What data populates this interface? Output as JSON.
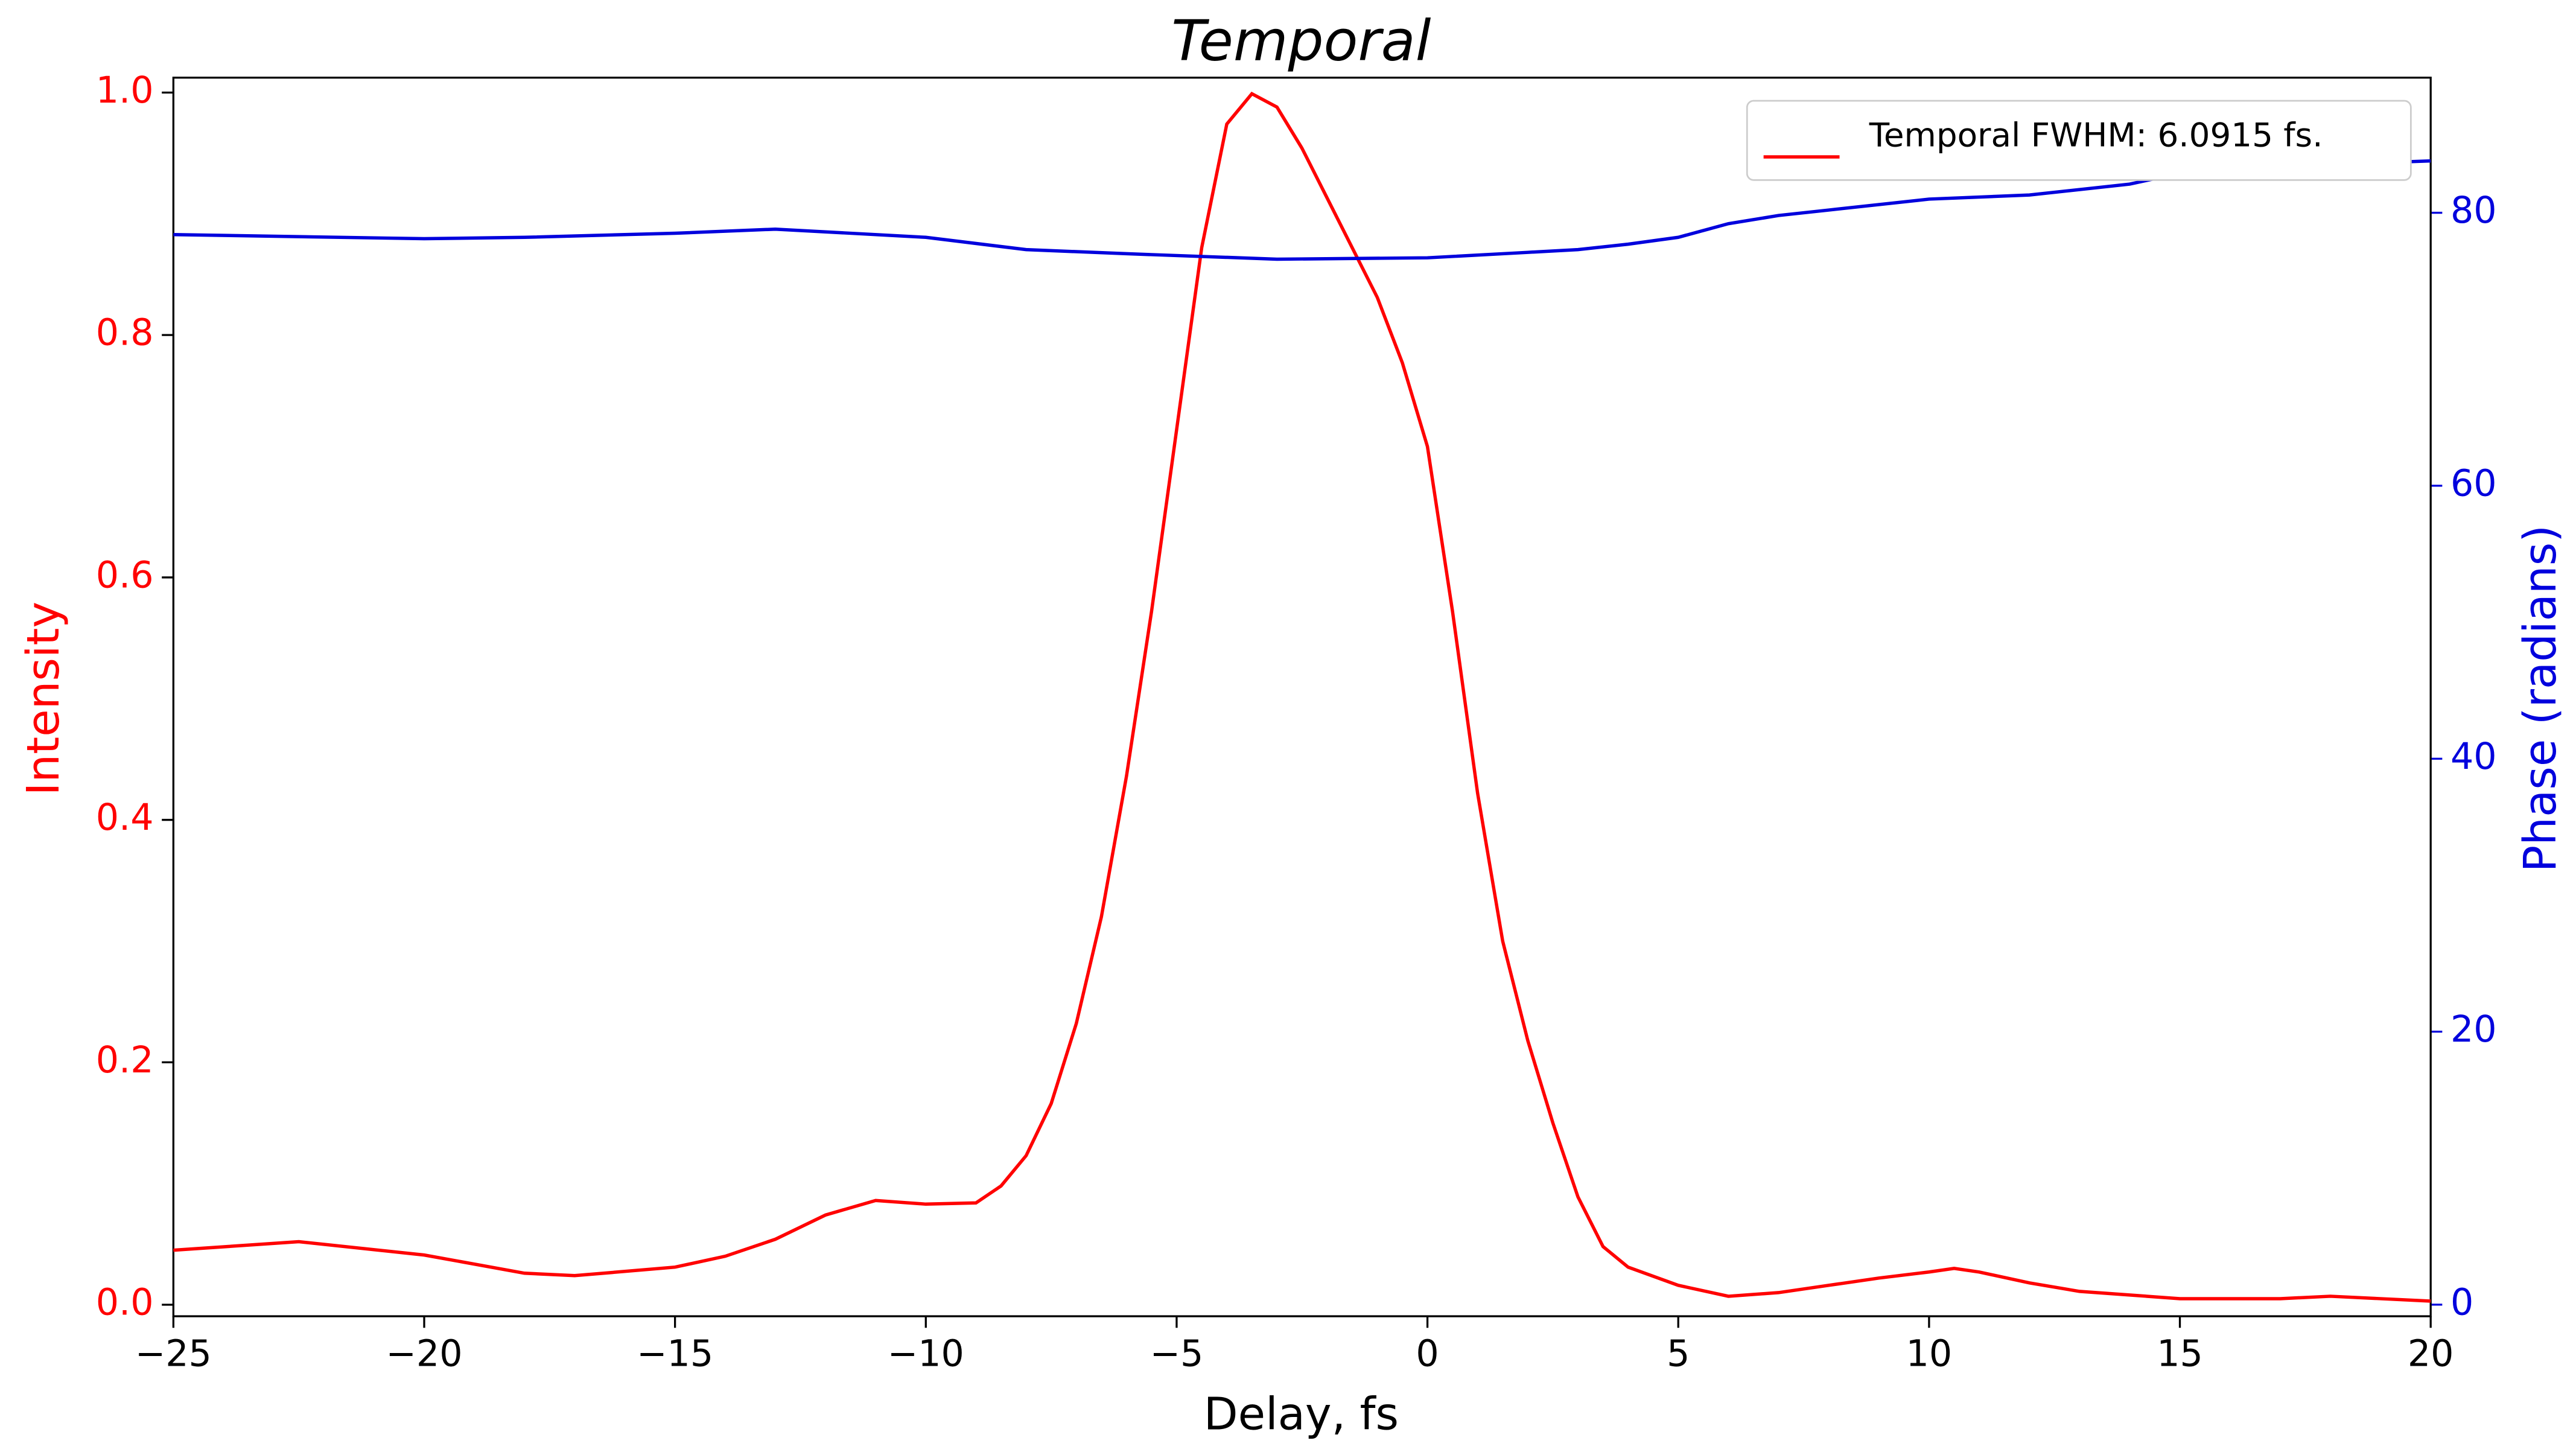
{
  "chart_data": {
    "type": "line",
    "title": "Temporal",
    "xlabel": "Delay, fs",
    "ylabel": "Intensity",
    "y2label": "Phase (radians)",
    "xlim": [
      -25,
      20
    ],
    "ylim": [
      -0.0095,
      1.0123
    ],
    "y2lim": [
      -0.85,
      89.9
    ],
    "xticks": [
      {
        "value": -25,
        "label": "−25"
      },
      {
        "value": -20,
        "label": "−20"
      },
      {
        "value": -15,
        "label": "−15"
      },
      {
        "value": -10,
        "label": "−10"
      },
      {
        "value": -5,
        "label": "−5"
      },
      0,
      5,
      10,
      15,
      20
    ],
    "yticks": [
      {
        "value": 0,
        "label": "0.0"
      },
      0.2,
      0.4,
      0.6,
      0.8,
      {
        "value": 1,
        "label": "1.0"
      }
    ],
    "y2ticks": [
      0,
      20,
      40,
      60,
      80
    ],
    "ylabel_color": "#ff0000",
    "y2label_color": "#0000dd",
    "legend": "upper right",
    "series": [
      {
        "name": "Temporal FWHM: 6.0915 fs.",
        "color": "#ff0000",
        "x": [
          -25,
          -22.5,
          -20,
          -18,
          -17,
          -15,
          -14,
          -13,
          -12,
          -11,
          -10,
          -9,
          -8.5,
          -8,
          -7.5,
          -7,
          -6.5,
          -6,
          -5.5,
          -5,
          -4.5,
          -4,
          -3.5,
          -3,
          -2.5,
          -2,
          -1.5,
          -1,
          -0.5,
          0,
          0.5,
          1,
          1.5,
          2,
          2.5,
          3,
          3.5,
          4,
          5,
          6,
          7,
          8,
          9,
          10,
          10.5,
          11,
          12,
          13,
          15,
          17,
          18,
          20
        ],
        "values": [
          0.045,
          0.052,
          0.041,
          0.026,
          0.024,
          0.031,
          0.04,
          0.054,
          0.074,
          0.086,
          0.083,
          0.084,
          0.098,
          0.123,
          0.166,
          0.232,
          0.32,
          0.436,
          0.572,
          0.722,
          0.872,
          0.974,
          0.999,
          0.988,
          0.954,
          0.913,
          0.872,
          0.831,
          0.777,
          0.708,
          0.572,
          0.422,
          0.3,
          0.218,
          0.15,
          0.089,
          0.048,
          0.031,
          0.016,
          0.007,
          0.01,
          0.016,
          0.022,
          0.027,
          0.03,
          0.027,
          0.018,
          0.011,
          0.005,
          0.005,
          0.007,
          0.003
        ]
      },
      {
        "color": "#0000dd",
        "axis": "y2",
        "x": [
          -25,
          -20,
          -18,
          -15,
          -13,
          -10,
          -8,
          -6,
          -3,
          0,
          2,
          3,
          4,
          5,
          6,
          7,
          8,
          10,
          12,
          14,
          15,
          17,
          20
        ],
        "values": [
          78.4,
          78.1,
          78.2,
          78.5,
          78.8,
          78.2,
          77.3,
          77.0,
          76.6,
          76.7,
          77.1,
          77.3,
          77.7,
          78.2,
          79.2,
          79.8,
          80.2,
          81.0,
          81.3,
          82.1,
          82.9,
          83.4,
          83.8
        ]
      }
    ]
  }
}
